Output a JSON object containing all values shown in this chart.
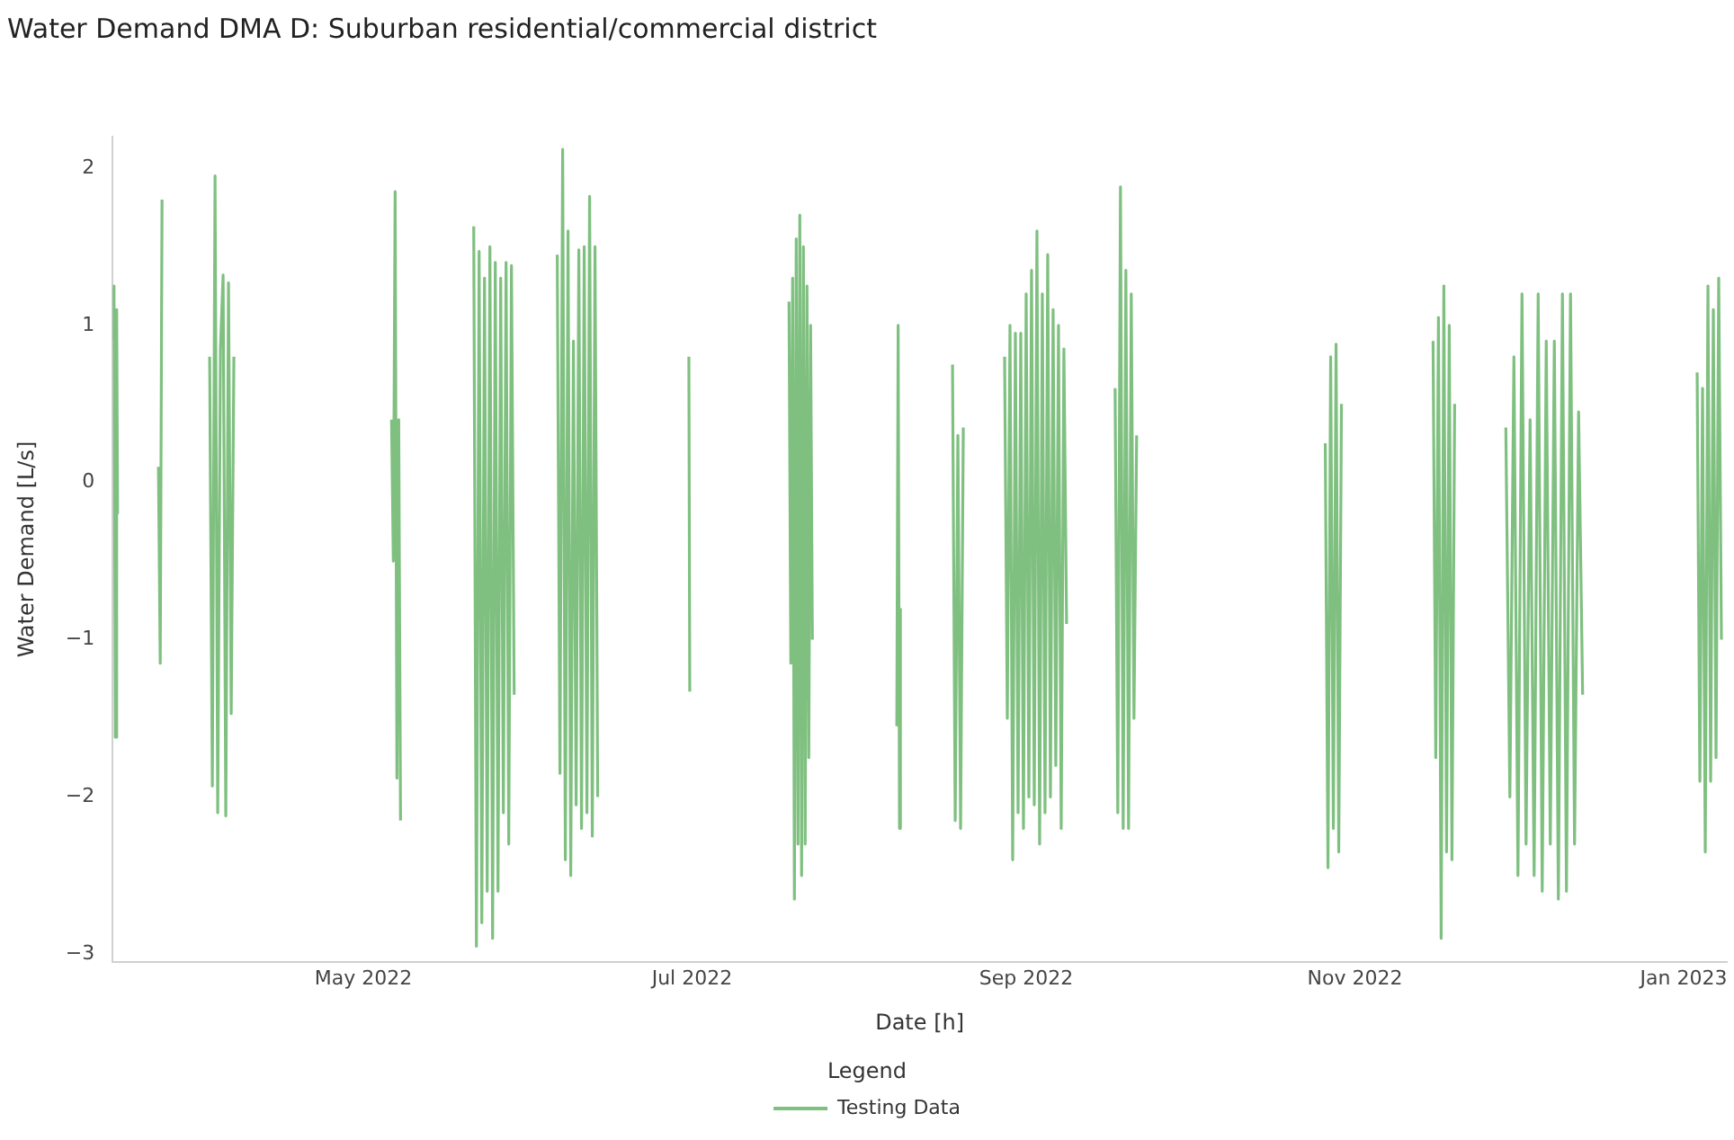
{
  "chart_data": {
    "type": "line",
    "title": "Water Demand DMA D: Suburban residential/commercial district",
    "xlabel": "Date [h]",
    "ylabel": "Water Demand [L/s]",
    "legend_title": "Legend",
    "legend": "bottom",
    "grid": false,
    "xlim": [
      "2022-03-15T12:00",
      "2023-01-09T00:00"
    ],
    "ylim": [
      -3.05,
      2.2
    ],
    "xticks": [
      {
        "value": "2022-05-01",
        "label": "May 2022"
      },
      {
        "value": "2022-07-01",
        "label": "Jul 2022"
      },
      {
        "value": "2022-09-01",
        "label": "Sep 2022"
      },
      {
        "value": "2022-11-01",
        "label": "Nov 2022"
      },
      {
        "value": "2023-01-01",
        "label": "Jan 2023"
      }
    ],
    "yticks": [
      {
        "value": -3,
        "label": "−3"
      },
      {
        "value": -2,
        "label": "−2"
      },
      {
        "value": -1,
        "label": "−1"
      },
      0,
      1,
      2
    ],
    "series": [
      {
        "name": "Testing Data",
        "color": "#7fc080",
        "x": [
          "2022-03-15T12:00",
          "2022-03-15T18:00",
          "2022-03-16T00:00",
          "2022-03-16T06:00",
          "2022-03-16T10:00",
          "2022-03-20T00:00",
          "2022-03-24T00:00",
          "2022-03-24T08:00",
          "2022-03-24T16:00",
          "2022-03-29T00:00",
          "2022-04-02T12:00",
          "2022-04-03T00:00",
          "2022-04-03T12:00",
          "2022-04-04T00:00",
          "2022-04-04T12:00",
          "2022-04-05T00:00",
          "2022-04-05T12:00",
          "2022-04-06T00:00",
          "2022-04-06T12:00",
          "2022-04-07T00:00",
          "2022-04-20T00:00",
          "2022-05-06T06:00",
          "2022-05-06T14:00",
          "2022-05-06T22:00",
          "2022-05-07T06:00",
          "2022-05-07T14:00",
          "2022-05-07T22:00",
          "2022-05-15T00:00",
          "2022-05-21T12:00",
          "2022-05-22T00:00",
          "2022-05-22T12:00",
          "2022-05-23T00:00",
          "2022-05-23T12:00",
          "2022-05-24T00:00",
          "2022-05-24T12:00",
          "2022-05-25T00:00",
          "2022-05-25T12:00",
          "2022-05-26T00:00",
          "2022-05-26T12:00",
          "2022-05-27T00:00",
          "2022-05-27T12:00",
          "2022-05-28T00:00",
          "2022-05-28T12:00",
          "2022-05-29T00:00",
          "2022-06-01T00:00",
          "2022-06-06T00:00",
          "2022-06-06T12:00",
          "2022-06-07T00:00",
          "2022-06-07T12:00",
          "2022-06-08T00:00",
          "2022-06-08T12:00",
          "2022-06-09T00:00",
          "2022-06-09T12:00",
          "2022-06-10T00:00",
          "2022-06-10T12:00",
          "2022-06-11T00:00",
          "2022-06-11T12:00",
          "2022-06-12T00:00",
          "2022-06-12T12:00",
          "2022-06-13T00:00",
          "2022-06-13T12:00",
          "2022-06-22T00:00",
          "2022-06-30T10:00",
          "2022-06-30T14:00",
          "2022-07-10T00:00",
          "2022-07-19T00:00",
          "2022-07-19T08:00",
          "2022-07-19T16:00",
          "2022-07-20T00:00",
          "2022-07-20T08:00",
          "2022-07-20T16:00",
          "2022-07-21T00:00",
          "2022-07-21T08:00",
          "2022-07-21T16:00",
          "2022-07-22T00:00",
          "2022-07-22T08:00",
          "2022-07-22T16:00",
          "2022-07-23T00:00",
          "2022-07-23T08:00",
          "2022-08-01T00:00",
          "2022-08-08T00:00",
          "2022-08-08T06:00",
          "2022-08-08T12:00",
          "2022-08-08T16:00",
          "2022-08-13T00:00",
          "2022-08-18T08:00",
          "2022-08-18T20:00",
          "2022-08-19T08:00",
          "2022-08-19T20:00",
          "2022-08-20T08:00",
          "2022-08-23T00:00",
          "2022-08-28T00:00",
          "2022-08-28T12:00",
          "2022-08-29T00:00",
          "2022-08-29T12:00",
          "2022-08-30T00:00",
          "2022-08-30T12:00",
          "2022-08-31T00:00",
          "2022-08-31T12:00",
          "2022-09-01T00:00",
          "2022-09-01T12:00",
          "2022-09-02T00:00",
          "2022-09-02T12:00",
          "2022-09-03T00:00",
          "2022-09-03T12:00",
          "2022-09-04T00:00",
          "2022-09-04T12:00",
          "2022-09-05T00:00",
          "2022-09-05T12:00",
          "2022-09-06T00:00",
          "2022-09-06T12:00",
          "2022-09-07T00:00",
          "2022-09-07T12:00",
          "2022-09-08T00:00",
          "2022-09-08T12:00",
          "2022-09-13T00:00",
          "2022-09-17T12:00",
          "2022-09-18T00:00",
          "2022-09-18T12:00",
          "2022-09-19T00:00",
          "2022-09-19T12:00",
          "2022-09-20T00:00",
          "2022-09-20T12:00",
          "2022-09-21T00:00",
          "2022-09-21T12:00",
          "2022-10-10T00:00",
          "2022-10-26T12:00",
          "2022-10-27T00:00",
          "2022-10-27T12:00",
          "2022-10-28T00:00",
          "2022-10-28T12:00",
          "2022-10-29T00:00",
          "2022-10-29T12:00",
          "2022-11-05T00:00",
          "2022-11-15T12:00",
          "2022-11-16T00:00",
          "2022-11-16T12:00",
          "2022-11-17T00:00",
          "2022-11-17T12:00",
          "2022-11-18T00:00",
          "2022-11-18T12:00",
          "2022-11-19T00:00",
          "2022-11-19T12:00",
          "2022-11-24T00:00",
          "2022-11-29T00:00",
          "2022-11-29T18:00",
          "2022-11-30T12:00",
          "2022-12-01T06:00",
          "2022-12-02T00:00",
          "2022-12-02T18:00",
          "2022-12-03T12:00",
          "2022-12-04T06:00",
          "2022-12-05T00:00",
          "2022-12-05T18:00",
          "2022-12-06T12:00",
          "2022-12-07T06:00",
          "2022-12-08T00:00",
          "2022-12-08T18:00",
          "2022-12-09T12:00",
          "2022-12-10T06:00",
          "2022-12-11T00:00",
          "2022-12-11T18:00",
          "2022-12-12T12:00",
          "2022-12-13T06:00",
          "2022-12-25T00:00",
          "2023-01-03T12:00",
          "2023-01-04T00:00",
          "2023-01-04T12:00",
          "2023-01-05T00:00",
          "2023-01-05T12:00",
          "2023-01-06T00:00",
          "2023-01-06T12:00",
          "2023-01-07T00:00",
          "2023-01-07T12:00",
          "2023-01-08T00:00"
        ],
        "values": [
          0.9,
          1.25,
          -1.62,
          1.1,
          -0.2,
          null,
          0.1,
          -1.15,
          1.8,
          null,
          0.8,
          -1.93,
          1.95,
          -2.1,
          0.85,
          1.32,
          -2.12,
          1.27,
          -1.47,
          0.8,
          null,
          0.4,
          -0.5,
          1.85,
          -1.88,
          0.4,
          -2.15,
          null,
          1.63,
          -2.95,
          1.47,
          -2.8,
          1.3,
          -2.6,
          1.5,
          -2.9,
          1.4,
          -2.6,
          1.3,
          -2.1,
          1.4,
          -2.3,
          1.38,
          -1.35,
          null,
          1.45,
          -1.85,
          2.12,
          -2.4,
          1.6,
          -2.5,
          0.9,
          -2.05,
          1.48,
          -2.2,
          1.5,
          -2.1,
          1.82,
          -2.25,
          1.5,
          -2.0,
          null,
          0.8,
          -1.33,
          null,
          1.15,
          -1.15,
          1.3,
          -2.65,
          1.55,
          -2.3,
          1.7,
          -2.5,
          1.5,
          -2.3,
          1.25,
          -1.75,
          1.0,
          -1.0,
          null,
          -1.55,
          1.0,
          -2.2,
          -0.8,
          null,
          0.75,
          -2.15,
          0.3,
          -2.2,
          0.35,
          null,
          0.8,
          -1.5,
          1.0,
          -2.4,
          0.95,
          -2.1,
          0.95,
          -2.2,
          1.2,
          -2.0,
          1.35,
          -2.05,
          1.6,
          -2.3,
          1.2,
          -2.1,
          1.45,
          -2.0,
          1.1,
          -1.8,
          1.0,
          -2.2,
          0.85,
          -0.9,
          null,
          0.6,
          -2.1,
          1.88,
          -2.2,
          1.35,
          -2.2,
          1.2,
          -1.5,
          0.3,
          null,
          0.25,
          -2.45,
          0.8,
          -2.2,
          0.88,
          -2.35,
          0.5,
          null,
          0.9,
          -1.75,
          1.05,
          -2.9,
          1.25,
          -2.35,
          1.0,
          -2.4,
          0.5,
          null,
          0.35,
          -2.0,
          0.8,
          -2.5,
          1.2,
          -2.3,
          0.4,
          -2.5,
          1.2,
          -2.6,
          0.9,
          -2.3,
          0.9,
          -2.65,
          1.2,
          -2.6,
          1.2,
          -2.3,
          0.45,
          -1.35,
          null,
          0.7,
          -1.9,
          0.6,
          -2.35,
          1.25,
          -1.9,
          1.1,
          -1.75,
          1.3,
          -1.0
        ]
      }
    ]
  }
}
